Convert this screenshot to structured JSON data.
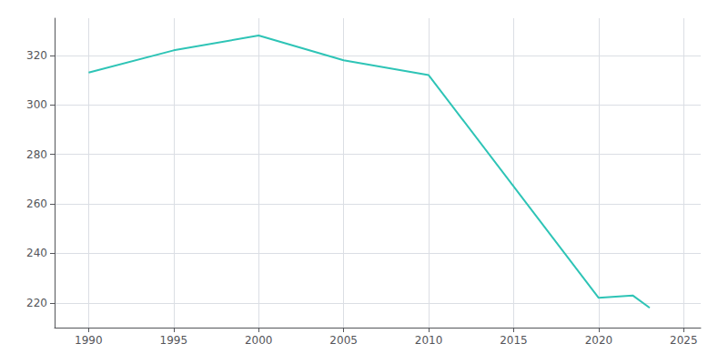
{
  "chart_data": {
    "type": "line",
    "x": [
      1990,
      1995,
      2000,
      2005,
      2010,
      2020,
      2022,
      2023
    ],
    "values": [
      313,
      322,
      328,
      318,
      312,
      222,
      223,
      218
    ],
    "color": "#2ec4b6",
    "xlim": [
      1988,
      2026
    ],
    "ylim": [
      210,
      335
    ],
    "xticks": [
      1990,
      1995,
      2000,
      2005,
      2010,
      2015,
      2020,
      2025
    ],
    "yticks": [
      220,
      240,
      260,
      280,
      300,
      320
    ],
    "grid": true
  }
}
